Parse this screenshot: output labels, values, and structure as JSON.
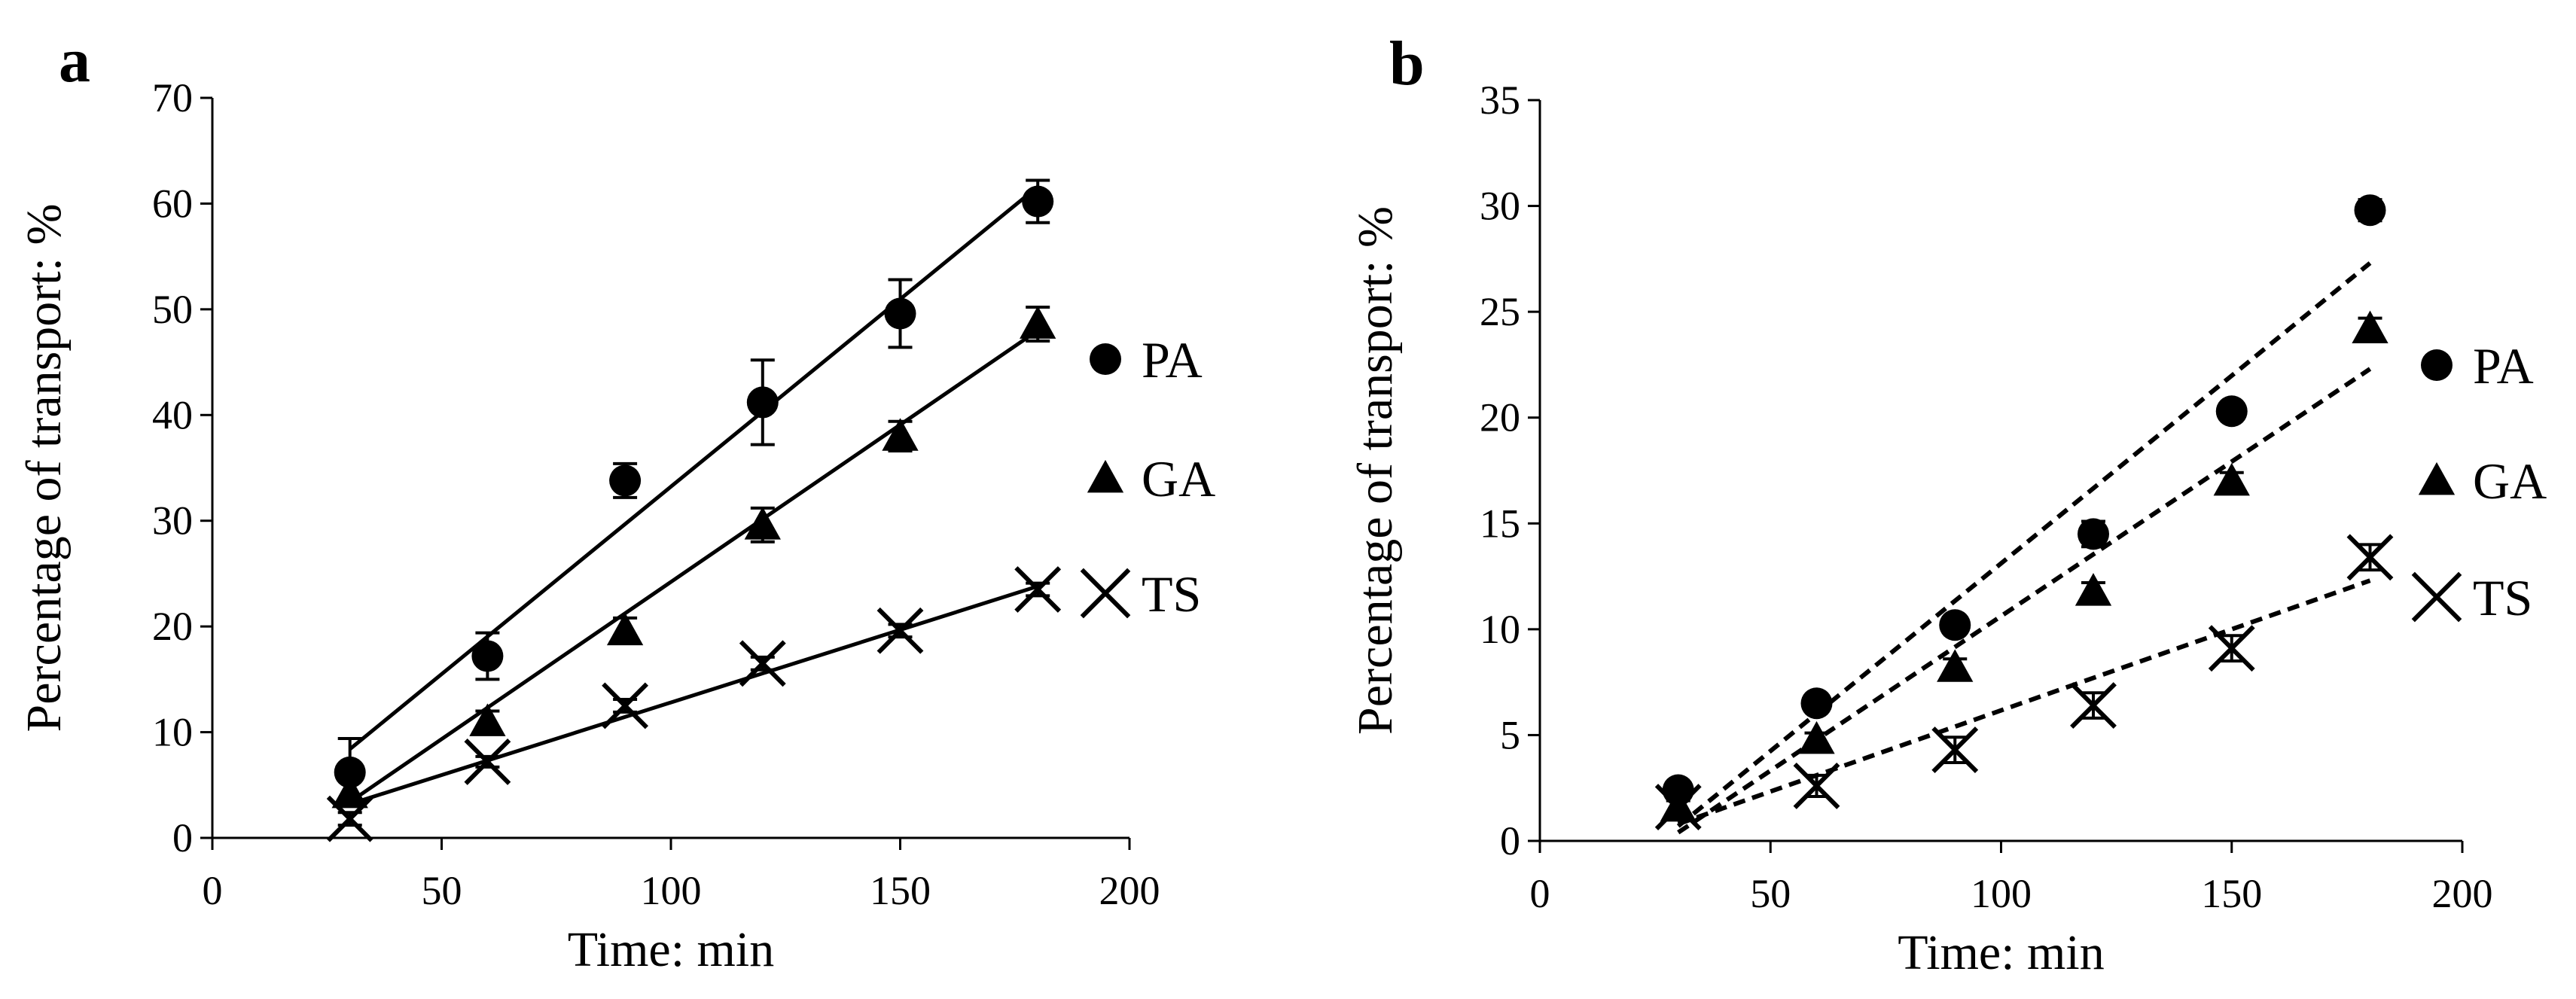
{
  "chart_data": [
    {
      "type": "scatter",
      "panel_label": "a",
      "xlabel": "Time: min",
      "ylabel": "Percentage of transport: %",
      "xlim": [
        0,
        200
      ],
      "ylim": [
        0,
        70
      ],
      "xticks": [
        "0",
        "50",
        "100",
        "150",
        "200"
      ],
      "yticks": [
        "0",
        "10",
        "20",
        "30",
        "40",
        "50",
        "60",
        "70"
      ],
      "x": [
        30,
        60,
        90,
        120,
        150,
        180
      ],
      "fit_line_style": "solid",
      "series": [
        {
          "name": "PA",
          "marker": "circle",
          "values": [
            6.2,
            17.2,
            33.8,
            41.2,
            49.6,
            60.2
          ],
          "errors": [
            3.2,
            2.2,
            1.6,
            4.0,
            3.2,
            2.0
          ],
          "fit": [
            8.4,
            61.6
          ]
        },
        {
          "name": "GA",
          "marker": "triangle",
          "values": [
            4.2,
            11.0,
            19.6,
            29.6,
            38.0,
            48.6
          ],
          "errors": [
            1.2,
            1.0,
            1.2,
            1.6,
            1.4,
            1.6
          ],
          "fit": [
            3.4,
            48.0
          ]
        },
        {
          "name": "TS",
          "marker": "cross",
          "values": [
            1.8,
            7.2,
            12.5,
            16.5,
            19.6,
            23.5
          ],
          "errors": [
            0.6,
            0.5,
            0.6,
            0.6,
            0.6,
            0.6
          ],
          "fit": [
            3.2,
            23.8
          ]
        }
      ]
    },
    {
      "type": "scatter",
      "panel_label": "b",
      "xlabel": "Time: min",
      "ylabel": "Percentage of transport: %",
      "xlim": [
        0,
        200
      ],
      "ylim": [
        0,
        35
      ],
      "xticks": [
        "0",
        "50",
        "100",
        "150",
        "200"
      ],
      "yticks": [
        "0",
        "5",
        "10",
        "15",
        "20",
        "25",
        "30",
        "35"
      ],
      "x": [
        30,
        60,
        90,
        120,
        150,
        180
      ],
      "fit_line_style": "dashed",
      "series": [
        {
          "name": "PA",
          "marker": "circle",
          "values": [
            2.4,
            6.5,
            10.2,
            14.5,
            20.3,
            29.8
          ],
          "errors": [
            0.3,
            0.3,
            0.4,
            0.6,
            0.4,
            0.5
          ],
          "fit": [
            0.7,
            27.3
          ]
        },
        {
          "name": "GA",
          "marker": "triangle",
          "values": [
            1.6,
            4.8,
            8.2,
            11.8,
            17.0,
            24.2
          ],
          "errors": [
            0.3,
            0.3,
            0.4,
            0.4,
            0.4,
            0.5
          ],
          "fit": [
            0.4,
            22.3
          ]
        },
        {
          "name": "TS",
          "marker": "cross",
          "values": [
            1.6,
            2.6,
            4.3,
            6.4,
            9.1,
            13.4
          ],
          "errors": [
            0.5,
            0.5,
            0.6,
            0.6,
            0.6,
            0.6
          ],
          "fit": [
            0.8,
            12.3
          ]
        }
      ]
    }
  ]
}
